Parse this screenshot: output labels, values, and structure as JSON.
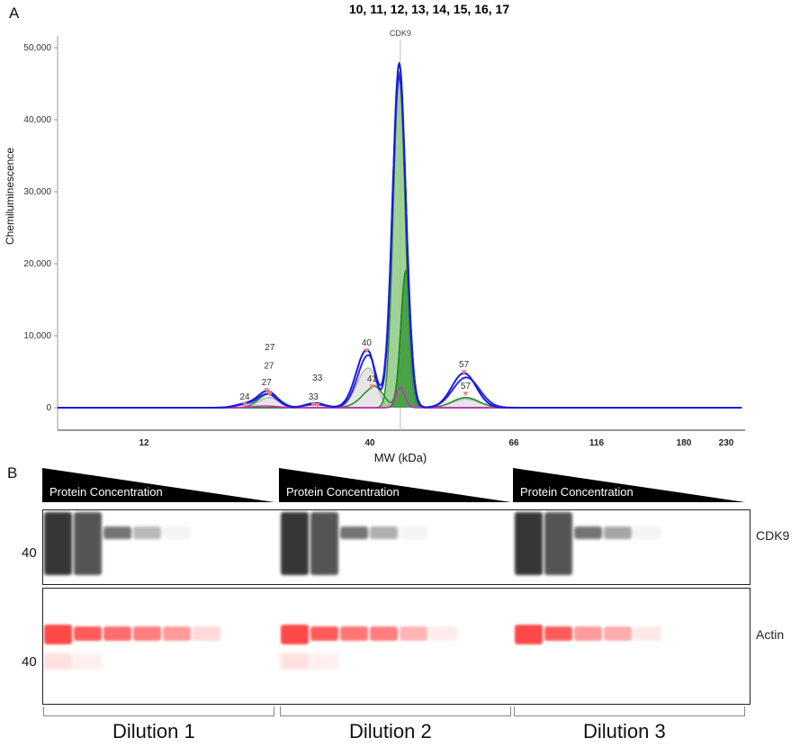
{
  "panel_a_letter": "A",
  "panel_b_letter": "B",
  "chart_data": {
    "type": "line",
    "title": "10, 11, 12, 13, 14, 15, 16, 17",
    "xlabel": "MW (kDa)",
    "ylabel": "Chemiluminescence",
    "ylim": [
      0,
      52000
    ],
    "yticks": [
      0,
      10000,
      20000,
      30000,
      40000,
      50000
    ],
    "ytick_labels": [
      "0",
      "10,000",
      "20,000",
      "30,000",
      "40,000",
      "50,000"
    ],
    "xticks": [
      12,
      40,
      66,
      116,
      180,
      230
    ],
    "xtick_labels": [
      "12",
      "40",
      "66",
      "116",
      "180",
      "230"
    ],
    "marker_line": {
      "label": "CDK9",
      "mw": 45.5
    },
    "peak_labels": [
      {
        "text": "24",
        "mw": 24.5,
        "y": 1100
      },
      {
        "text": "27",
        "mw": 27.2,
        "y": 3100
      },
      {
        "text": "27",
        "mw": 27.5,
        "y": 2700
      },
      {
        "text": "27",
        "mw": 27.6,
        "y": 2500
      },
      {
        "text": "33",
        "mw": 33.0,
        "y": 1100
      },
      {
        "text": "33",
        "mw": 33.5,
        "y": 1000
      },
      {
        "text": "40",
        "mw": 39.6,
        "y": 8600
      },
      {
        "text": "41",
        "mw": 40.4,
        "y": 3600
      },
      {
        "text": "57",
        "mw": 57.0,
        "y": 5600
      },
      {
        "text": "57",
        "mw": 57.3,
        "y": 2600
      }
    ],
    "series": [
      {
        "name": "total-blue",
        "color": "#1a1adc",
        "peaks": [
          [
            24.5,
            500,
            1.2
          ],
          [
            27.3,
            2300,
            1.2
          ],
          [
            33.2,
            650,
            1.2
          ],
          [
            39.6,
            8000,
            1.3
          ],
          [
            45.3,
            47800,
            1.2
          ],
          [
            57,
            4800,
            2.2
          ]
        ]
      },
      {
        "name": "total-blue-2",
        "color": "#2a2ae8",
        "peaks": [
          [
            24.5,
            400,
            1.2
          ],
          [
            27.3,
            1900,
            1.2
          ],
          [
            33.2,
            550,
            1.2
          ],
          [
            39.8,
            7300,
            1.3
          ],
          [
            45.3,
            46000,
            1.25
          ],
          [
            57.4,
            4200,
            2.4
          ]
        ]
      },
      {
        "name": "green-fill-main",
        "color": "#2a8a2a",
        "fill": "#8fca85",
        "peaks": [
          [
            45.3,
            46500,
            1.05
          ]
        ]
      },
      {
        "name": "green-fill-dark",
        "color": "#1e7a1e",
        "fill": "#3c9a3c",
        "peaks": [
          [
            46.5,
            19000,
            0.9
          ]
        ]
      },
      {
        "name": "green-line",
        "color": "#1f8a1f",
        "peaks": [
          [
            27.5,
            1900,
            1.3
          ],
          [
            33.2,
            400,
            1.3
          ],
          [
            40.8,
            3000,
            1.6
          ],
          [
            46.5,
            19000,
            0.9
          ],
          [
            57.3,
            1400,
            2.4
          ]
        ]
      },
      {
        "name": "grey-component",
        "color": "#b8b8b8",
        "fill": "#e2e2e2",
        "peaks": [
          [
            27.5,
            1400,
            1.3
          ],
          [
            39.8,
            5500,
            1.4
          ],
          [
            46.5,
            7500,
            0.9
          ],
          [
            57.3,
            1200,
            2.5
          ]
        ]
      },
      {
        "name": "magenta-component",
        "color": "#e020d0",
        "peaks": [
          [
            27,
            250,
            1.5
          ],
          [
            45.5,
            2800,
            0.8
          ]
        ]
      }
    ]
  },
  "blot": {
    "triangle_label": "Protein Concentration",
    "mw_marker": "40",
    "targets": [
      "CDK9",
      "Actin"
    ],
    "dilutions": [
      "Dilution 1",
      "Dilution 2",
      "Dilution 3"
    ],
    "cdk9_lane_intensity": [
      [
        1.0,
        0.85,
        0.7,
        0.35,
        0.05,
        0,
        0,
        0
      ],
      [
        1.0,
        0.85,
        0.7,
        0.4,
        0.05,
        0,
        0,
        0
      ],
      [
        1.0,
        0.85,
        0.7,
        0.45,
        0.05,
        0,
        0,
        0
      ]
    ],
    "actin_lane_intensity": [
      [
        1.0,
        0.9,
        0.8,
        0.7,
        0.55,
        0.2,
        0,
        0
      ],
      [
        1.0,
        0.9,
        0.75,
        0.7,
        0.4,
        0.1,
        0,
        0
      ],
      [
        1.0,
        0.9,
        0.55,
        0.45,
        0.12,
        0,
        0,
        0
      ]
    ],
    "colors": {
      "cdk9": "#222222",
      "actin": "#ff2a2a"
    }
  }
}
